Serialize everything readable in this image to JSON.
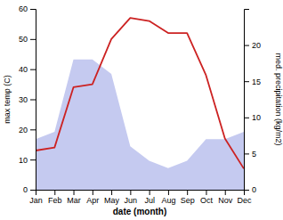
{
  "chart_data": {
    "type": "line",
    "categories": [
      "Jan",
      "Feb",
      "Mar",
      "Apr",
      "May",
      "Jun",
      "Jul",
      "Aug",
      "Sep",
      "Oct",
      "Nov",
      "Dec"
    ],
    "xlabel": "date (month)",
    "ylabel": "max temp (C)",
    "y2label": "med. precipitation (kg/m2)",
    "series": [
      {
        "type": "area",
        "axis": "y2",
        "color": "#c5caf0",
        "values": [
          7,
          8,
          18,
          18,
          16,
          6,
          4,
          3,
          4,
          7,
          7,
          8
        ]
      },
      {
        "type": "line",
        "color": "#cc2222",
        "values": [
          13,
          14,
          34,
          35,
          50,
          57,
          56,
          52,
          52,
          38,
          17,
          7
        ]
      }
    ],
    "ylim": [
      0,
      60
    ],
    "yticks": [
      0,
      10,
      20,
      30,
      40,
      50,
      60
    ],
    "y2lim": [
      0,
      25
    ],
    "y2ticks": [
      0,
      5,
      10,
      15,
      20
    ]
  }
}
